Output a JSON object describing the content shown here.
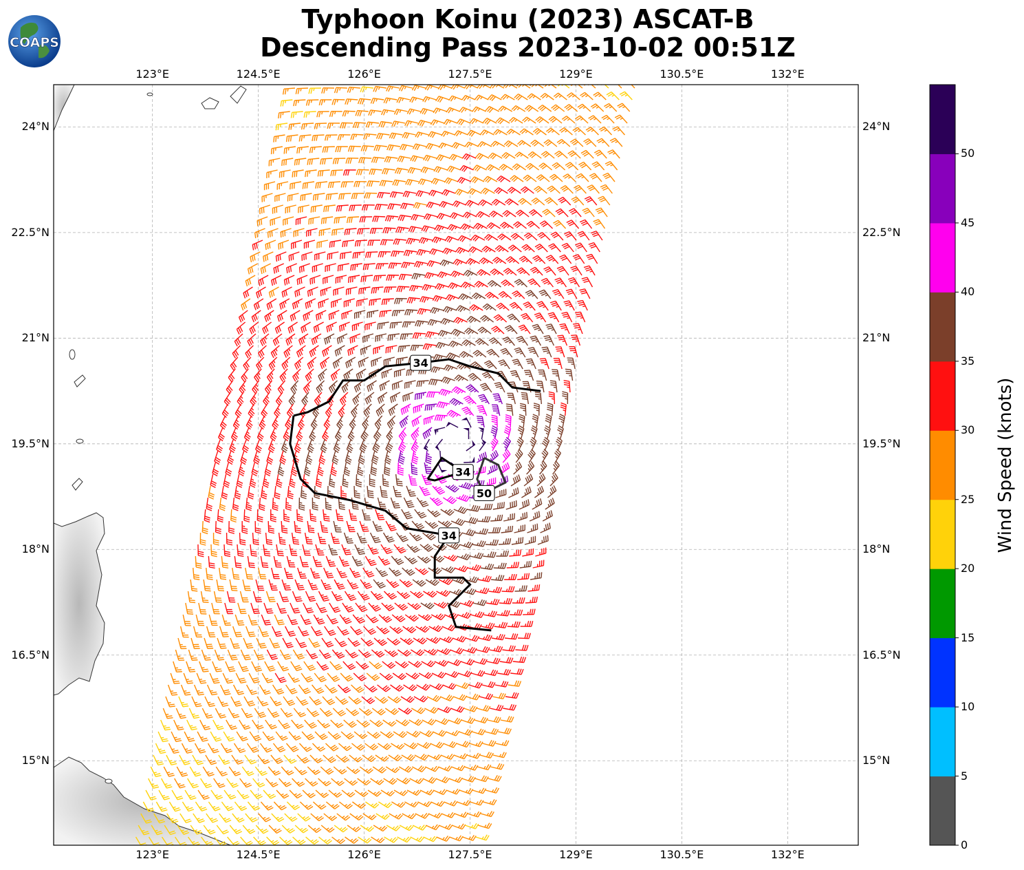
{
  "title_line1": "Typhoon Koinu (2023) ASCAT-B",
  "title_line2": "Descending Pass 2023-10-02 00:51Z",
  "logo_text": "COAPS",
  "map": {
    "lon_range": [
      121.6,
      133.0
    ],
    "lat_range": [
      13.8,
      24.6
    ],
    "lon_ticks": [
      {
        "value": 123.0,
        "label": "123°E"
      },
      {
        "value": 124.5,
        "label": "124.5°E"
      },
      {
        "value": 126.0,
        "label": "126°E"
      },
      {
        "value": 127.5,
        "label": "127.5°E"
      },
      {
        "value": 129.0,
        "label": "129°E"
      },
      {
        "value": 130.5,
        "label": "130.5°E"
      },
      {
        "value": 132.0,
        "label": "132°E"
      }
    ],
    "lat_ticks": [
      {
        "value": 24.0,
        "label": "24°N"
      },
      {
        "value": 22.5,
        "label": "22.5°N"
      },
      {
        "value": 21.0,
        "label": "21°N"
      },
      {
        "value": 19.5,
        "label": "19.5°N"
      },
      {
        "value": 18.0,
        "label": "18°N"
      },
      {
        "value": 16.5,
        "label": "16.5°N"
      },
      {
        "value": 15.0,
        "label": "15°N"
      }
    ],
    "grid": true,
    "storm_center": {
      "lon": 127.3,
      "lat": 19.5
    },
    "contours": [
      {
        "label": "34",
        "color": "#000000",
        "points": [
          [
            125.0,
            19.9
          ],
          [
            125.2,
            19.95
          ],
          [
            125.5,
            20.1
          ],
          [
            125.7,
            20.4
          ],
          [
            126.0,
            20.4
          ],
          [
            126.3,
            20.6
          ],
          [
            126.8,
            20.65
          ],
          [
            127.2,
            20.7
          ],
          [
            127.5,
            20.6
          ],
          [
            127.9,
            20.5
          ],
          [
            128.1,
            20.3
          ],
          [
            128.5,
            20.25
          ]
        ]
      },
      {
        "label": "34",
        "color": "#000000",
        "points": [
          [
            125.0,
            19.9
          ],
          [
            124.95,
            19.5
          ],
          [
            125.1,
            19.0
          ],
          [
            125.3,
            18.8
          ],
          [
            125.8,
            18.7
          ],
          [
            126.3,
            18.55
          ],
          [
            126.6,
            18.3
          ],
          [
            127.2,
            18.2
          ],
          [
            127.0,
            17.9
          ],
          [
            127.0,
            17.6
          ],
          [
            127.4,
            17.6
          ],
          [
            127.5,
            17.5
          ],
          [
            127.2,
            17.2
          ],
          [
            127.3,
            16.9
          ],
          [
            127.8,
            16.85
          ]
        ]
      },
      {
        "label": "34",
        "color": "#000000",
        "points": [
          [
            126.9,
            19.0
          ],
          [
            127.1,
            19.3
          ],
          [
            127.4,
            19.1
          ],
          [
            127.0,
            18.98
          ],
          [
            126.9,
            19.0
          ]
        ]
      },
      {
        "label": "50",
        "color": "#333333",
        "points": [
          [
            127.7,
            19.3
          ],
          [
            127.9,
            19.2
          ],
          [
            128.0,
            18.95
          ],
          [
            127.7,
            18.8
          ],
          [
            127.6,
            19.0
          ],
          [
            127.7,
            19.3
          ]
        ]
      }
    ]
  },
  "colorbar": {
    "label": "Wind Speed (knots)",
    "bins": [
      {
        "from": 0,
        "to": 5,
        "color": "#555555"
      },
      {
        "from": 5,
        "to": 10,
        "color": "#00bfff"
      },
      {
        "from": 10,
        "to": 15,
        "color": "#0033ff"
      },
      {
        "from": 15,
        "to": 20,
        "color": "#009900"
      },
      {
        "from": 20,
        "to": 25,
        "color": "#ffd20a"
      },
      {
        "from": 25,
        "to": 30,
        "color": "#ff8c00"
      },
      {
        "from": 30,
        "to": 35,
        "color": "#ff1010"
      },
      {
        "from": 35,
        "to": 40,
        "color": "#7b3f2a"
      },
      {
        "from": 40,
        "to": 45,
        "color": "#ff00ee"
      },
      {
        "from": 45,
        "to": 50,
        "color": "#8800bb"
      },
      {
        "from": 50,
        "to": 55,
        "color": "#2b0057"
      }
    ],
    "ticks": [
      "0",
      "5",
      "10",
      "15",
      "20",
      "25",
      "30",
      "35",
      "40",
      "45",
      "50"
    ]
  },
  "colors": {
    "coast": "#333333",
    "land": "#e8e8e8",
    "grid": "#b0b0b0"
  }
}
